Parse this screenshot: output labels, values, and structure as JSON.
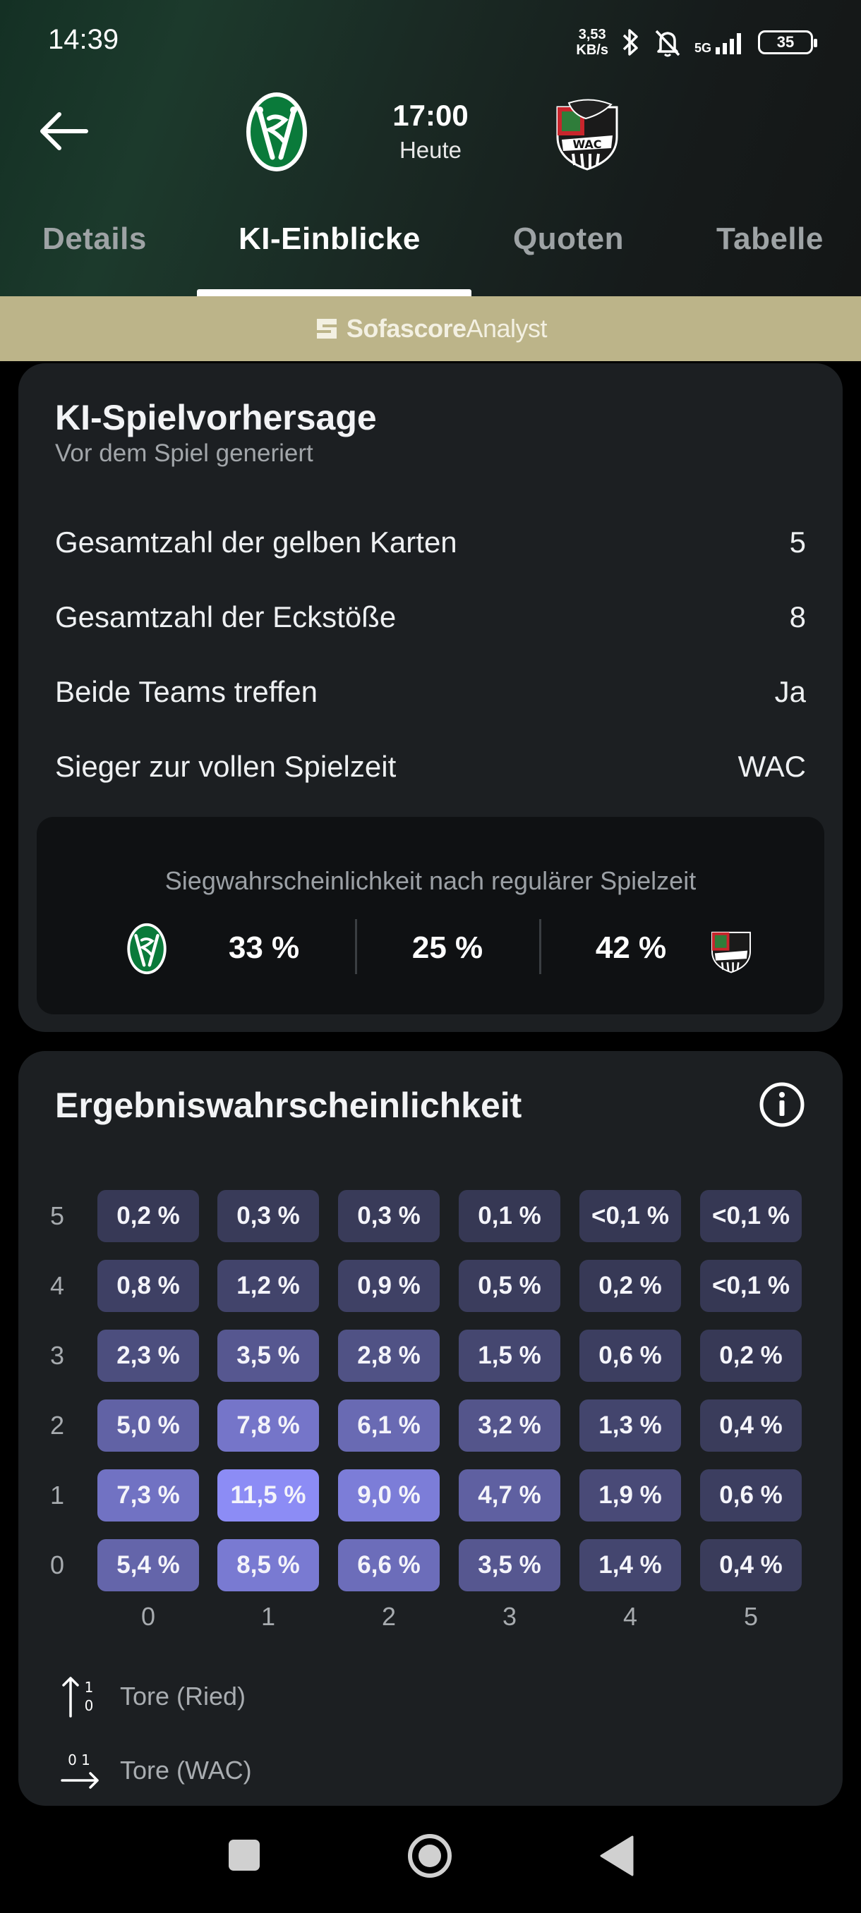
{
  "status_bar": {
    "time": "14:39",
    "net_speed_value": "3,53",
    "net_speed_unit": "KB/s",
    "network": "5G",
    "battery": "35"
  },
  "match_header": {
    "kickoff_time": "17:00",
    "kickoff_day": "Heute",
    "home_team_logo_letters": "SVR",
    "away_team_logo_letters": "WAC"
  },
  "tabs": [
    {
      "label": "Details",
      "active": false
    },
    {
      "label": "KI-Einblicke",
      "active": true
    },
    {
      "label": "Quoten",
      "active": false
    },
    {
      "label": "Tabelle",
      "active": false
    }
  ],
  "banner": {
    "brand_bold": "Sofascore",
    "brand_light": "Analyst",
    "background": "#bcb489"
  },
  "prediction_card": {
    "title": "KI-Spielvorhersage",
    "subtitle": "Vor dem Spiel generiert",
    "rows": [
      {
        "label": "Gesamtzahl der gelben Karten",
        "value": "5"
      },
      {
        "label": "Gesamtzahl der Eckstöße",
        "value": "8"
      },
      {
        "label": "Beide Teams treffen",
        "value": "Ja"
      },
      {
        "label": "Sieger zur vollen Spielzeit",
        "value": "WAC"
      }
    ],
    "win_probability": {
      "caption": "Siegwahrscheinlichkeit nach regulärer Spielzeit",
      "home": "33 %",
      "draw": "25 %",
      "away": "42 %"
    }
  },
  "result_card": {
    "title": "Ergebniswahrscheinlichkeit",
    "info_icon": "info-icon",
    "row_labels": [
      "5",
      "4",
      "3",
      "2",
      "1",
      "0"
    ],
    "col_labels": [
      "0",
      "1",
      "2",
      "3",
      "4",
      "5"
    ],
    "grid": [
      [
        "0,2 %",
        "0,3 %",
        "0,3 %",
        "0,1 %",
        "<0,1 %",
        "<0,1 %"
      ],
      [
        "0,8 %",
        "1,2 %",
        "0,9 %",
        "0,5 %",
        "0,2 %",
        "<0,1 %"
      ],
      [
        "2,3 %",
        "3,5 %",
        "2,8 %",
        "1,5 %",
        "0,6 %",
        "0,2 %"
      ],
      [
        "5,0 %",
        "7,8 %",
        "6,1 %",
        "3,2 %",
        "1,3 %",
        "0,4 %"
      ],
      [
        "7,3 %",
        "11,5 %",
        "9,0 %",
        "4,7 %",
        "1,9 %",
        "0,6 %"
      ],
      [
        "5,4 %",
        "8,5 %",
        "6,6 %",
        "3,5 %",
        "1,4 %",
        "0,4 %"
      ]
    ],
    "legend": [
      {
        "icon": "arrow-up-icon",
        "digits_top": "1",
        "digits_bottom": "0",
        "label": "Tore (Ried)"
      },
      {
        "icon": "arrow-right-icon",
        "digits": "0 1",
        "label": "Tore (WAC)"
      }
    ]
  },
  "colors": {
    "card_bg": "#1c1f22",
    "cell_low": "#343650",
    "cell_high": "#8c8cf5"
  }
}
